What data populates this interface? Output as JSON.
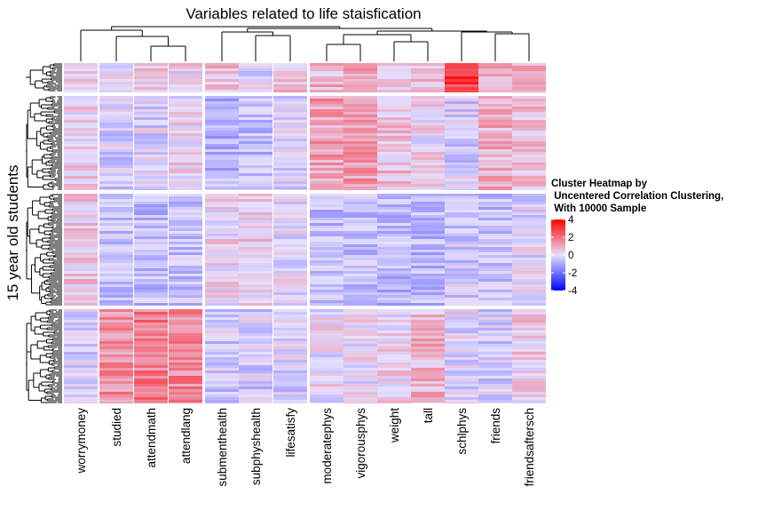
{
  "chart_data": {
    "type": "heatmap",
    "title": "Variables related to life staisfication",
    "ylabel": "15 year old students",
    "columns": [
      "worrymoney",
      "studied",
      "attendmath",
      "attendlang",
      "submenthealth",
      "subphyshealth",
      "lifesatisfy",
      "moderatephys",
      "vigorousphys",
      "weight",
      "tall",
      "schlphys",
      "friends",
      "friendsaftersch"
    ],
    "column_groups": [
      [
        "worrymoney"
      ],
      [
        "studied",
        "attendmath",
        "attendlang"
      ],
      [
        "submenthealth",
        "subphyshealth",
        "lifesatisfy"
      ],
      [
        "moderatephys",
        "vigorousphys",
        "weight",
        "tall",
        "schlphys",
        "friends",
        "friendsaftersch"
      ]
    ],
    "row_slices": 4,
    "legend": {
      "title_lines": [
        "Cluster Heatmap by",
        " Uncentered Correlation Clustering,",
        " With 10000 Sample"
      ],
      "ticks": [
        4,
        2,
        0,
        -2,
        -4
      ],
      "range": [
        -4,
        4
      ],
      "colors": {
        "low": "#0000ff",
        "mid": "#e6e0ff",
        "high": "#ff0000"
      }
    },
    "slice_profiles": [
      [
        0.2,
        -0.1,
        0.6,
        0.3,
        0.7,
        -0.2,
        0.5,
        0.8,
        1.0,
        0.3,
        0.5,
        3.0,
        0.9,
        0.9
      ],
      [
        0.3,
        -0.3,
        -0.2,
        0.2,
        -0.9,
        -0.6,
        -0.2,
        1.2,
        1.3,
        0.5,
        0.2,
        -0.3,
        0.9,
        0.6
      ],
      [
        0.4,
        -0.4,
        -0.6,
        -0.5,
        0.2,
        0.4,
        -0.1,
        -0.6,
        -0.5,
        -0.7,
        -0.6,
        -0.3,
        -0.6,
        -0.1
      ],
      [
        -0.2,
        1.5,
        1.8,
        1.6,
        -0.4,
        -0.3,
        -0.3,
        0.1,
        0.0,
        0.2,
        0.8,
        -0.1,
        -0.3,
        0.4
      ]
    ]
  }
}
